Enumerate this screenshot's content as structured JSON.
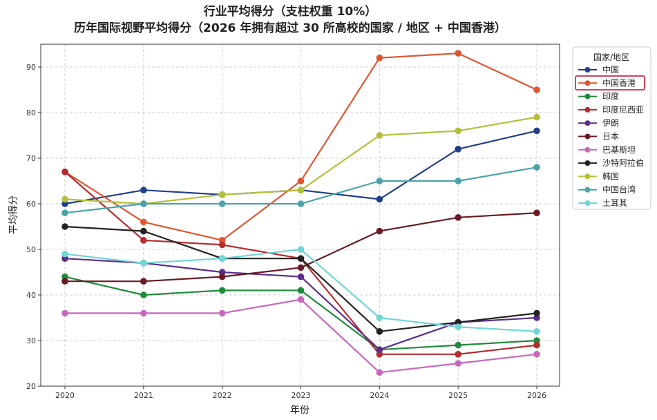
{
  "chart_data": {
    "type": "line",
    "title": "行业平均得分（支柱权重 10%）",
    "subtitle": "历年国际视野平均得分（2026 年拥有超过 30 所高校的国家 / 地区 + 中国香港）",
    "xlabel": "年份",
    "ylabel": "平均得分",
    "x": [
      2020,
      2021,
      2022,
      2023,
      2024,
      2025,
      2026
    ],
    "x_ticks": [
      "2020",
      "2021",
      "2022",
      "2023",
      "2024",
      "2025",
      "2026"
    ],
    "ylim": [
      20,
      95
    ],
    "y_ticks": [
      20,
      30,
      40,
      50,
      60,
      70,
      80,
      90
    ],
    "grid": true,
    "legend_title": "国家/地区",
    "legend_position": "outside-right",
    "highlighted_series": "中国香港",
    "series": [
      {
        "name": "中国",
        "color": "#1f3f8a",
        "values": [
          60,
          63,
          62,
          63,
          61,
          72,
          76
        ]
      },
      {
        "name": "中国香港",
        "color": "#e0552f",
        "values": [
          67,
          56,
          52,
          65,
          92,
          93,
          85
        ]
      },
      {
        "name": "印度",
        "color": "#1e8a3a",
        "values": [
          44,
          40,
          41,
          41,
          28,
          29,
          30
        ]
      },
      {
        "name": "印度尼西亚",
        "color": "#b52c2c",
        "values": [
          67,
          52,
          51,
          48,
          27,
          27,
          29
        ]
      },
      {
        "name": "伊朗",
        "color": "#5b2d8a",
        "values": [
          48,
          47,
          45,
          44,
          28,
          34,
          35
        ]
      },
      {
        "name": "日本",
        "color": "#6b1a24",
        "values": [
          43,
          43,
          44,
          46,
          54,
          57,
          58
        ]
      },
      {
        "name": "巴基斯坦",
        "color": "#c966bd",
        "values": [
          36,
          36,
          36,
          39,
          23,
          25,
          27
        ]
      },
      {
        "name": "沙特阿拉伯",
        "color": "#222222",
        "values": [
          55,
          54,
          48,
          48,
          32,
          34,
          36
        ]
      },
      {
        "name": "韩国",
        "color": "#b5bf3a",
        "values": [
          61,
          60,
          62,
          63,
          75,
          76,
          79
        ]
      },
      {
        "name": "中国台湾",
        "color": "#4aa3aa",
        "values": [
          58,
          60,
          60,
          60,
          65,
          65,
          68
        ]
      },
      {
        "name": "土耳其",
        "color": "#6fd6d6",
        "values": [
          49,
          47,
          48,
          50,
          35,
          33,
          32
        ]
      }
    ]
  }
}
